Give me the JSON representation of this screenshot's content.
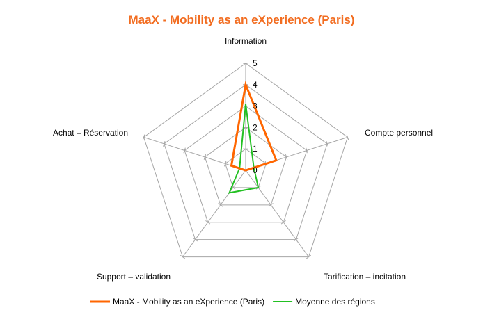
{
  "chart_data": {
    "type": "radar",
    "title": "MaaX - Mobility as an eXperience (Paris)",
    "categories": [
      "Information",
      "Compte personnel",
      "Tarification – incitation",
      "Support – validation",
      "Achat – Réservation"
    ],
    "rlim": [
      0,
      5
    ],
    "ticks": [
      "0",
      "1",
      "2",
      "3",
      "4",
      "5"
    ],
    "grid": true,
    "legend_position": "bottom",
    "series": [
      {
        "name": "MaaX - Mobility as an eXperience (Paris)",
        "color": "#ff6600",
        "values": [
          4,
          1.5,
          0,
          0,
          0.7
        ]
      },
      {
        "name": "Moyenne des régions",
        "color": "#22c022",
        "values": [
          3.1,
          0.4,
          1,
          1.3,
          0.3
        ]
      }
    ],
    "colors": {
      "title": "#f26d21",
      "grid": "#a6a6a6"
    }
  }
}
